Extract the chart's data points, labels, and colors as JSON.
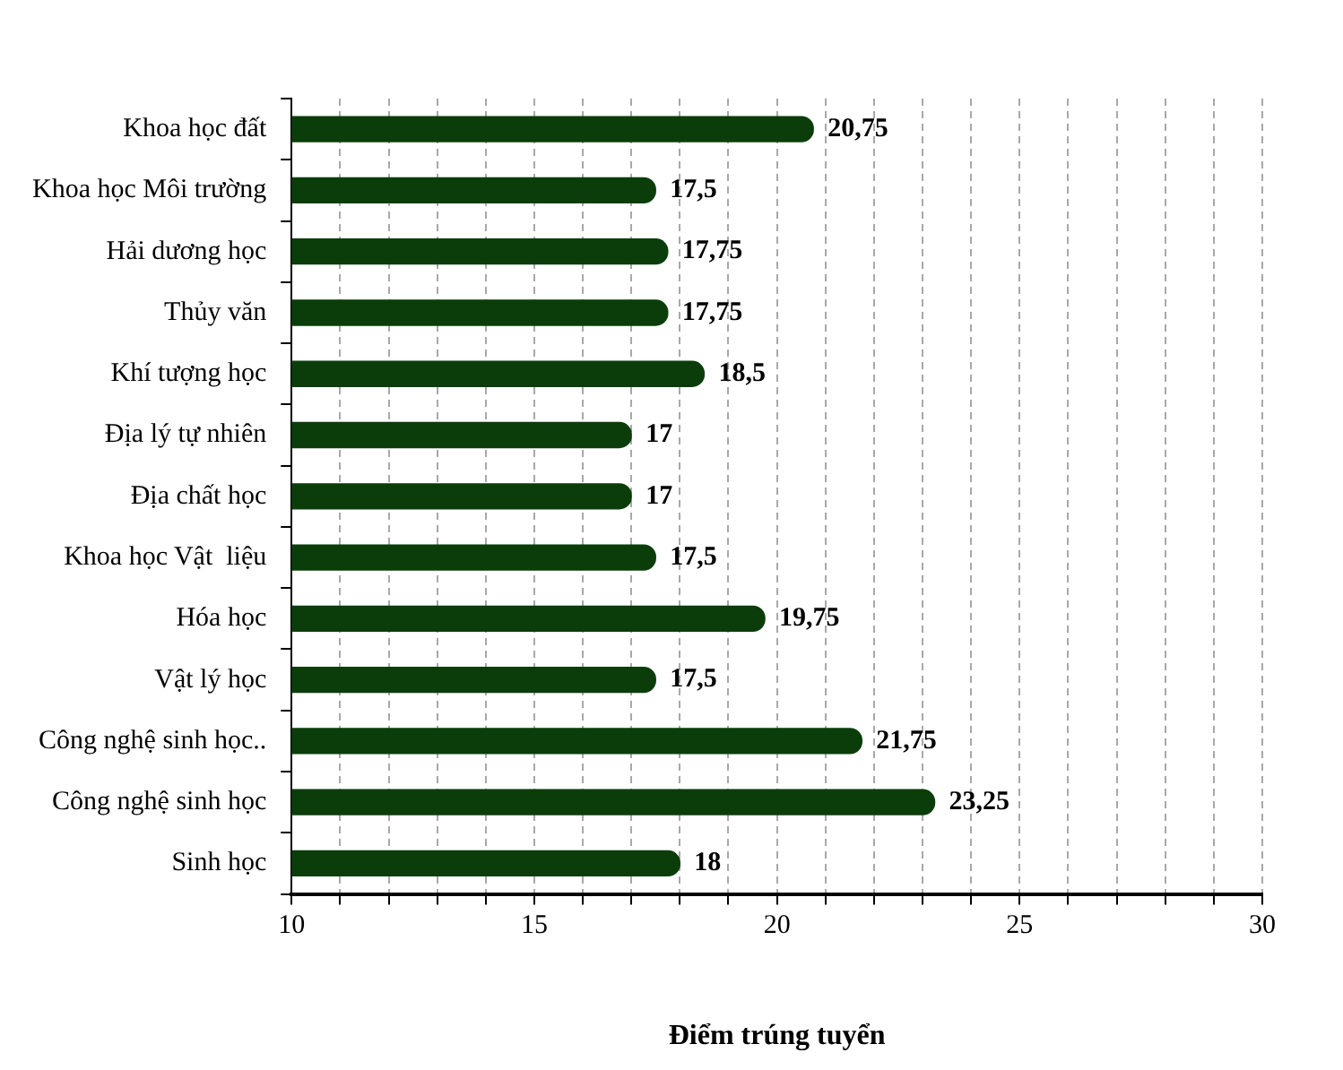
{
  "chart_data": {
    "type": "bar",
    "orientation": "horizontal",
    "categories": [
      "Khoa học đất",
      "Khoa học Môi trường",
      "Hải dương học",
      "Thủy văn",
      "Khí tượng học",
      "Địa lý tự nhiên",
      "Địa chất học",
      "Khoa học Vật  liệu",
      "Hóa học",
      "Vật lý học",
      "Công nghệ sinh học..",
      "Công nghệ sinh học",
      "Sinh học"
    ],
    "values": [
      20.75,
      17.5,
      17.75,
      17.75,
      18.5,
      17,
      17,
      17.5,
      19.75,
      17.5,
      21.75,
      23.25,
      18
    ],
    "value_labels": [
      "20,75",
      "17,5",
      "17,75",
      "17,75",
      "18,5",
      "17",
      "17",
      "17,5",
      "19,75",
      "17,5",
      "21,75",
      "23,25",
      "18"
    ],
    "color": "#0b3d0b",
    "xlim": [
      10,
      30
    ],
    "xticks": [
      10,
      {
        "value": 11,
        "label": null
      },
      {
        "value": 12,
        "label": null
      },
      {
        "value": 13,
        "label": null
      },
      {
        "value": 14,
        "label": null
      },
      15,
      {
        "value": 16,
        "label": null
      },
      {
        "value": 17,
        "label": null
      },
      {
        "value": 18,
        "label": null
      },
      {
        "value": 19,
        "label": null
      },
      20,
      {
        "value": 21,
        "label": null
      },
      {
        "value": 22,
        "label": null
      },
      {
        "value": 23,
        "label": null
      },
      {
        "value": 24,
        "label": null
      },
      25,
      {
        "value": 26,
        "label": null
      },
      {
        "value": 27,
        "label": null
      },
      {
        "value": 28,
        "label": null
      },
      {
        "value": 29,
        "label": null
      },
      30
    ],
    "xlabel": "Điểm trúng tuyển",
    "grid": "x"
  }
}
